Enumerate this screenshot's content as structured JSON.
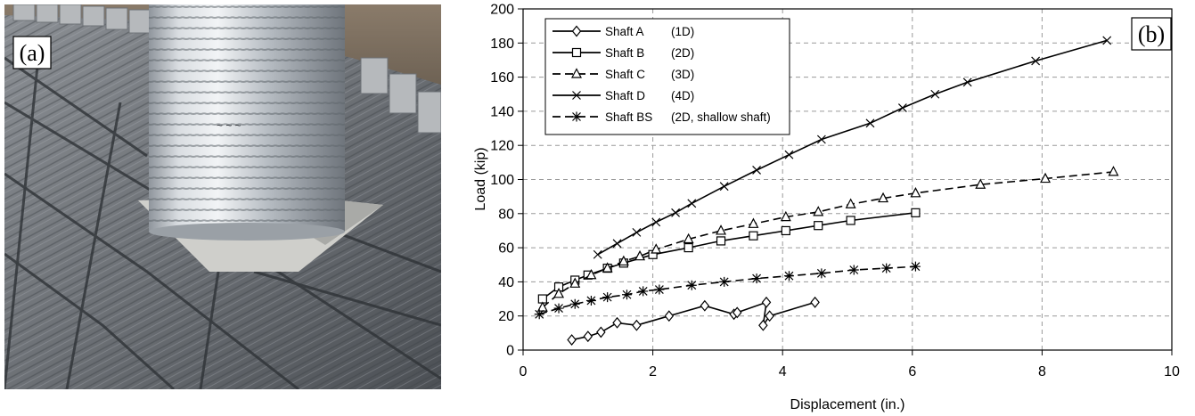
{
  "panel_a": {
    "label": "(a)"
  },
  "panel_b": {
    "label": "(b)"
  },
  "chart_data": {
    "type": "line",
    "xlabel": "Displacement (in.)",
    "ylabel": "Load (kip)",
    "xlim": [
      0,
      10
    ],
    "ylim": [
      0,
      200
    ],
    "xticks": [
      "0",
      "2",
      "4",
      "6",
      "8",
      "10"
    ],
    "yticks": [
      "0",
      "20",
      "40",
      "60",
      "80",
      "100",
      "120",
      "140",
      "160",
      "180",
      "200"
    ],
    "grid": true,
    "legend_position": "top-left",
    "series": [
      {
        "name": "Shaft A",
        "note": "(1D)",
        "marker": "diamond",
        "dash": "solid",
        "color": "#000000",
        "x": [
          0.75,
          1.0,
          1.2,
          1.45,
          1.75,
          2.25,
          2.8,
          3.25,
          3.3,
          3.75,
          3.7,
          3.8,
          4.5
        ],
        "y": [
          6,
          8,
          10.5,
          16,
          14.5,
          20,
          26,
          21,
          22,
          28,
          14.5,
          20,
          28
        ]
      },
      {
        "name": "Shaft B",
        "note": "(2D)",
        "marker": "square",
        "dash": "solid",
        "color": "#000000",
        "x": [
          0.3,
          0.55,
          0.8,
          1.0,
          1.3,
          1.55,
          2.0,
          2.55,
          3.05,
          3.55,
          4.05,
          4.55,
          5.05,
          6.05
        ],
        "y": [
          30,
          37,
          41,
          44,
          48,
          51,
          56,
          60,
          64,
          67,
          70,
          73,
          76,
          80.5
        ]
      },
      {
        "name": "Shaft C",
        "note": "(3D)",
        "marker": "triangle",
        "dash": "dashed",
        "color": "#000000",
        "x": [
          0.3,
          0.55,
          0.8,
          1.05,
          1.3,
          1.55,
          1.8,
          2.05,
          2.55,
          3.05,
          3.55,
          4.05,
          4.55,
          5.05,
          5.55,
          6.05,
          7.05,
          8.05,
          9.1
        ],
        "y": [
          25,
          33,
          39,
          44,
          48,
          52,
          55,
          59,
          65,
          70,
          74,
          78,
          81,
          85.5,
          89,
          92,
          97,
          100.5,
          104.5
        ]
      },
      {
        "name": "Shaft D",
        "note": "(4D)",
        "marker": "x",
        "dash": "solid",
        "color": "#000000",
        "x": [
          1.15,
          1.45,
          1.75,
          2.05,
          2.35,
          2.6,
          3.1,
          3.6,
          4.1,
          4.6,
          5.35,
          5.85,
          6.35,
          6.85,
          7.9,
          9.0
        ],
        "y": [
          56,
          62.5,
          69,
          75,
          80.5,
          86,
          96,
          105.5,
          114.5,
          123.5,
          133,
          142,
          150,
          157,
          169.5,
          181.5
        ]
      },
      {
        "name": "Shaft BS",
        "note": "(2D, shallow shaft)",
        "marker": "star",
        "dash": "dashed",
        "color": "#000000",
        "x": [
          0.25,
          0.55,
          0.8,
          1.05,
          1.3,
          1.6,
          1.85,
          2.1,
          2.6,
          3.1,
          3.6,
          4.1,
          4.6,
          5.1,
          5.6,
          6.05
        ],
        "y": [
          21,
          24.5,
          27,
          29,
          31,
          32.5,
          34.5,
          35.5,
          38,
          40,
          42,
          43.5,
          45,
          47,
          48,
          49
        ]
      }
    ]
  }
}
